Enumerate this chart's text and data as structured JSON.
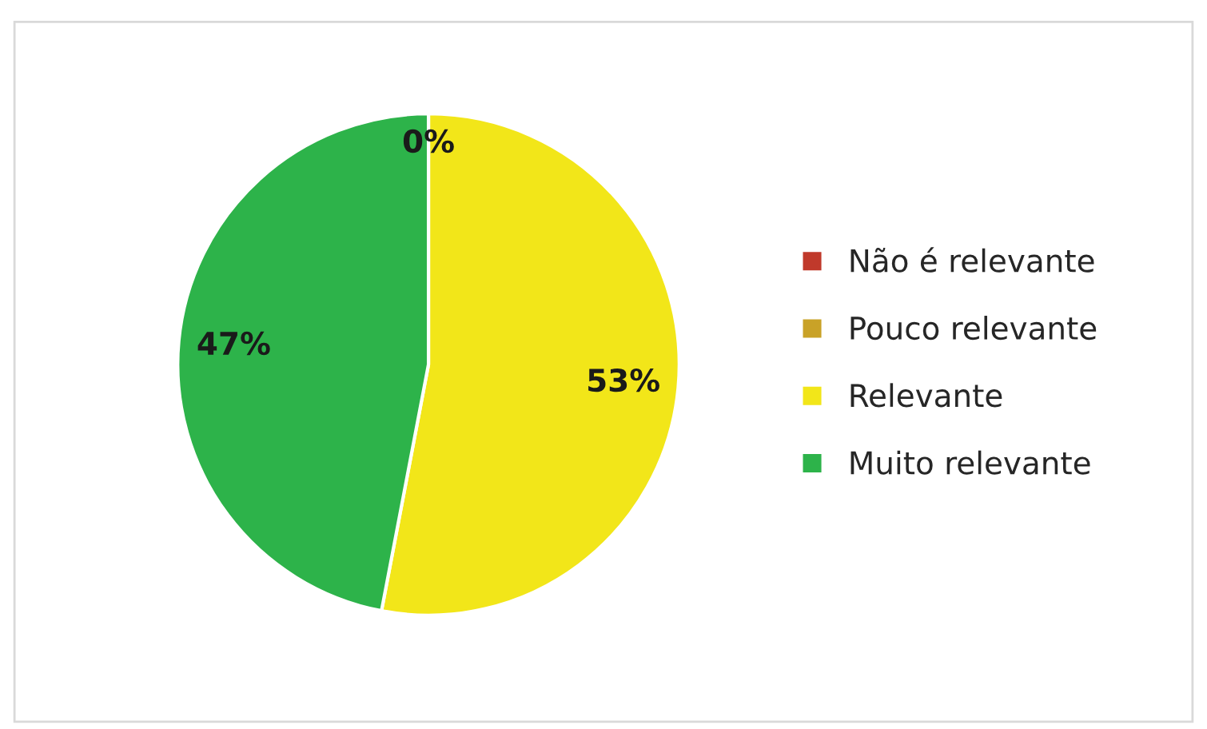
{
  "chart_data": {
    "type": "pie",
    "categories": [
      "Não é relevante",
      "Pouco relevante",
      "Relevante",
      "Muito relevante"
    ],
    "values": [
      0,
      0,
      53,
      47
    ],
    "colors": [
      "#c0392b",
      "#c9a227",
      "#f2e619",
      "#2db34a"
    ],
    "value_labels": [
      "0%",
      null,
      "53%",
      "47%"
    ],
    "legend": "right"
  }
}
